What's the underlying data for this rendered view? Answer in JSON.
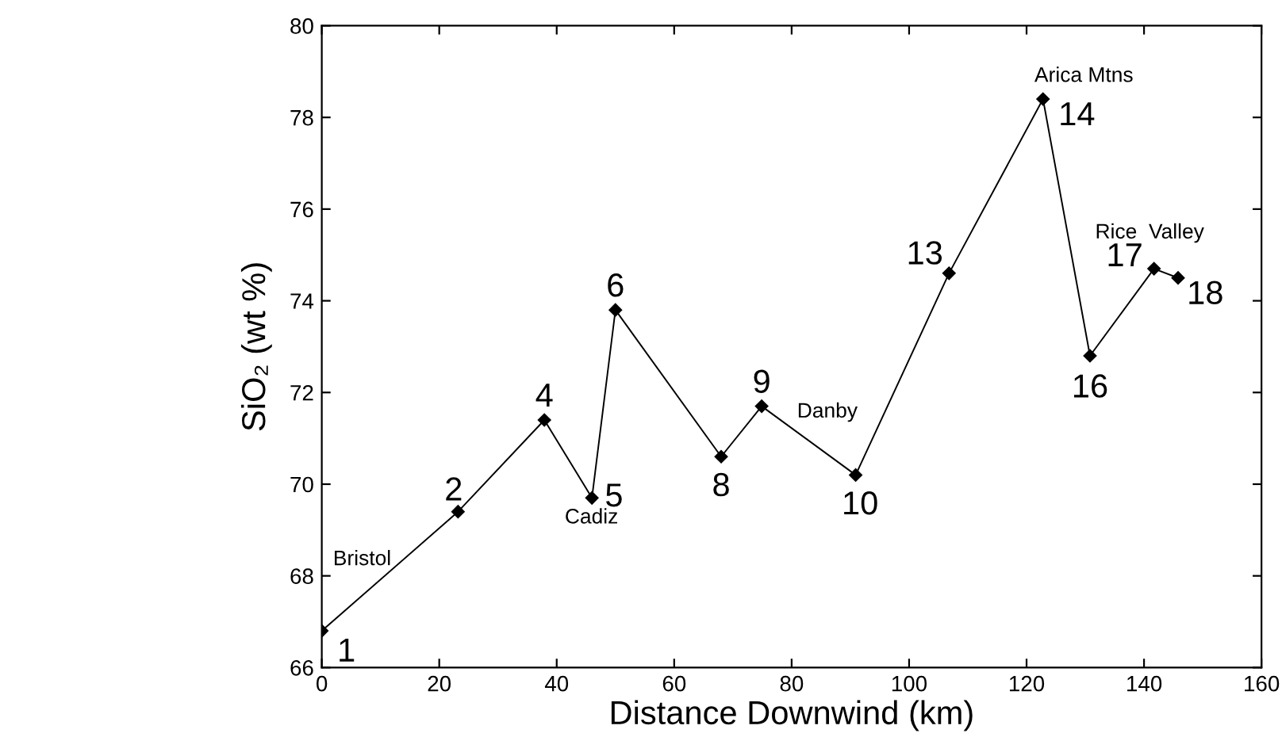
{
  "chart_data": {
    "type": "line",
    "xlabel": "Distance Downwind (km)",
    "ylabel": "SiO₂ (wt %)",
    "x": [
      0,
      23.2,
      37.9,
      46,
      50,
      68,
      74.9,
      90.9,
      106.8,
      122.8,
      130.8,
      141.7,
      145.8
    ],
    "series": [
      {
        "color": "#000000",
        "values": [
          66.8,
          69.4,
          71.4,
          69.7,
          73.8,
          70.6,
          71.7,
          70.2,
          74.6,
          78.4,
          72.8,
          74.7,
          74.5
        ]
      }
    ],
    "marker": "diamond",
    "line_style": "solid",
    "grid": false,
    "legend": false,
    "xlim": [
      0,
      160
    ],
    "xticks": [
      0,
      20,
      40,
      60,
      80,
      100,
      120,
      140,
      160
    ],
    "ylim": [
      66,
      80
    ],
    "yticks": [
      66,
      68,
      70,
      72,
      74,
      76,
      78,
      80
    ],
    "annotations": [
      {
        "text": "1",
        "x": 0,
        "y": 66.8
      },
      {
        "text": "2",
        "x": 23.2,
        "y": 69.4
      },
      {
        "text": "4",
        "x": 37.9,
        "y": 71.4
      },
      {
        "text": "5",
        "x": 46,
        "y": 69.7
      },
      {
        "text": "6",
        "x": 50,
        "y": 73.8
      },
      {
        "text": "8",
        "x": 68,
        "y": 70.6
      },
      {
        "text": "9",
        "x": 74.9,
        "y": 71.7
      },
      {
        "text": "10",
        "x": 90.9,
        "y": 70.2
      },
      {
        "text": "13",
        "x": 106.8,
        "y": 74.6
      },
      {
        "text": "14",
        "x": 122.8,
        "y": 78.4
      },
      {
        "text": "16",
        "x": 130.8,
        "y": 72.8
      },
      {
        "text": "17",
        "x": 141.7,
        "y": 74.7
      },
      {
        "text": "18",
        "x": 145.8,
        "y": 74.5
      },
      "Bristol",
      "Cadiz",
      "Danby",
      "Arica Mtns",
      "Rice  Valley"
    ]
  }
}
